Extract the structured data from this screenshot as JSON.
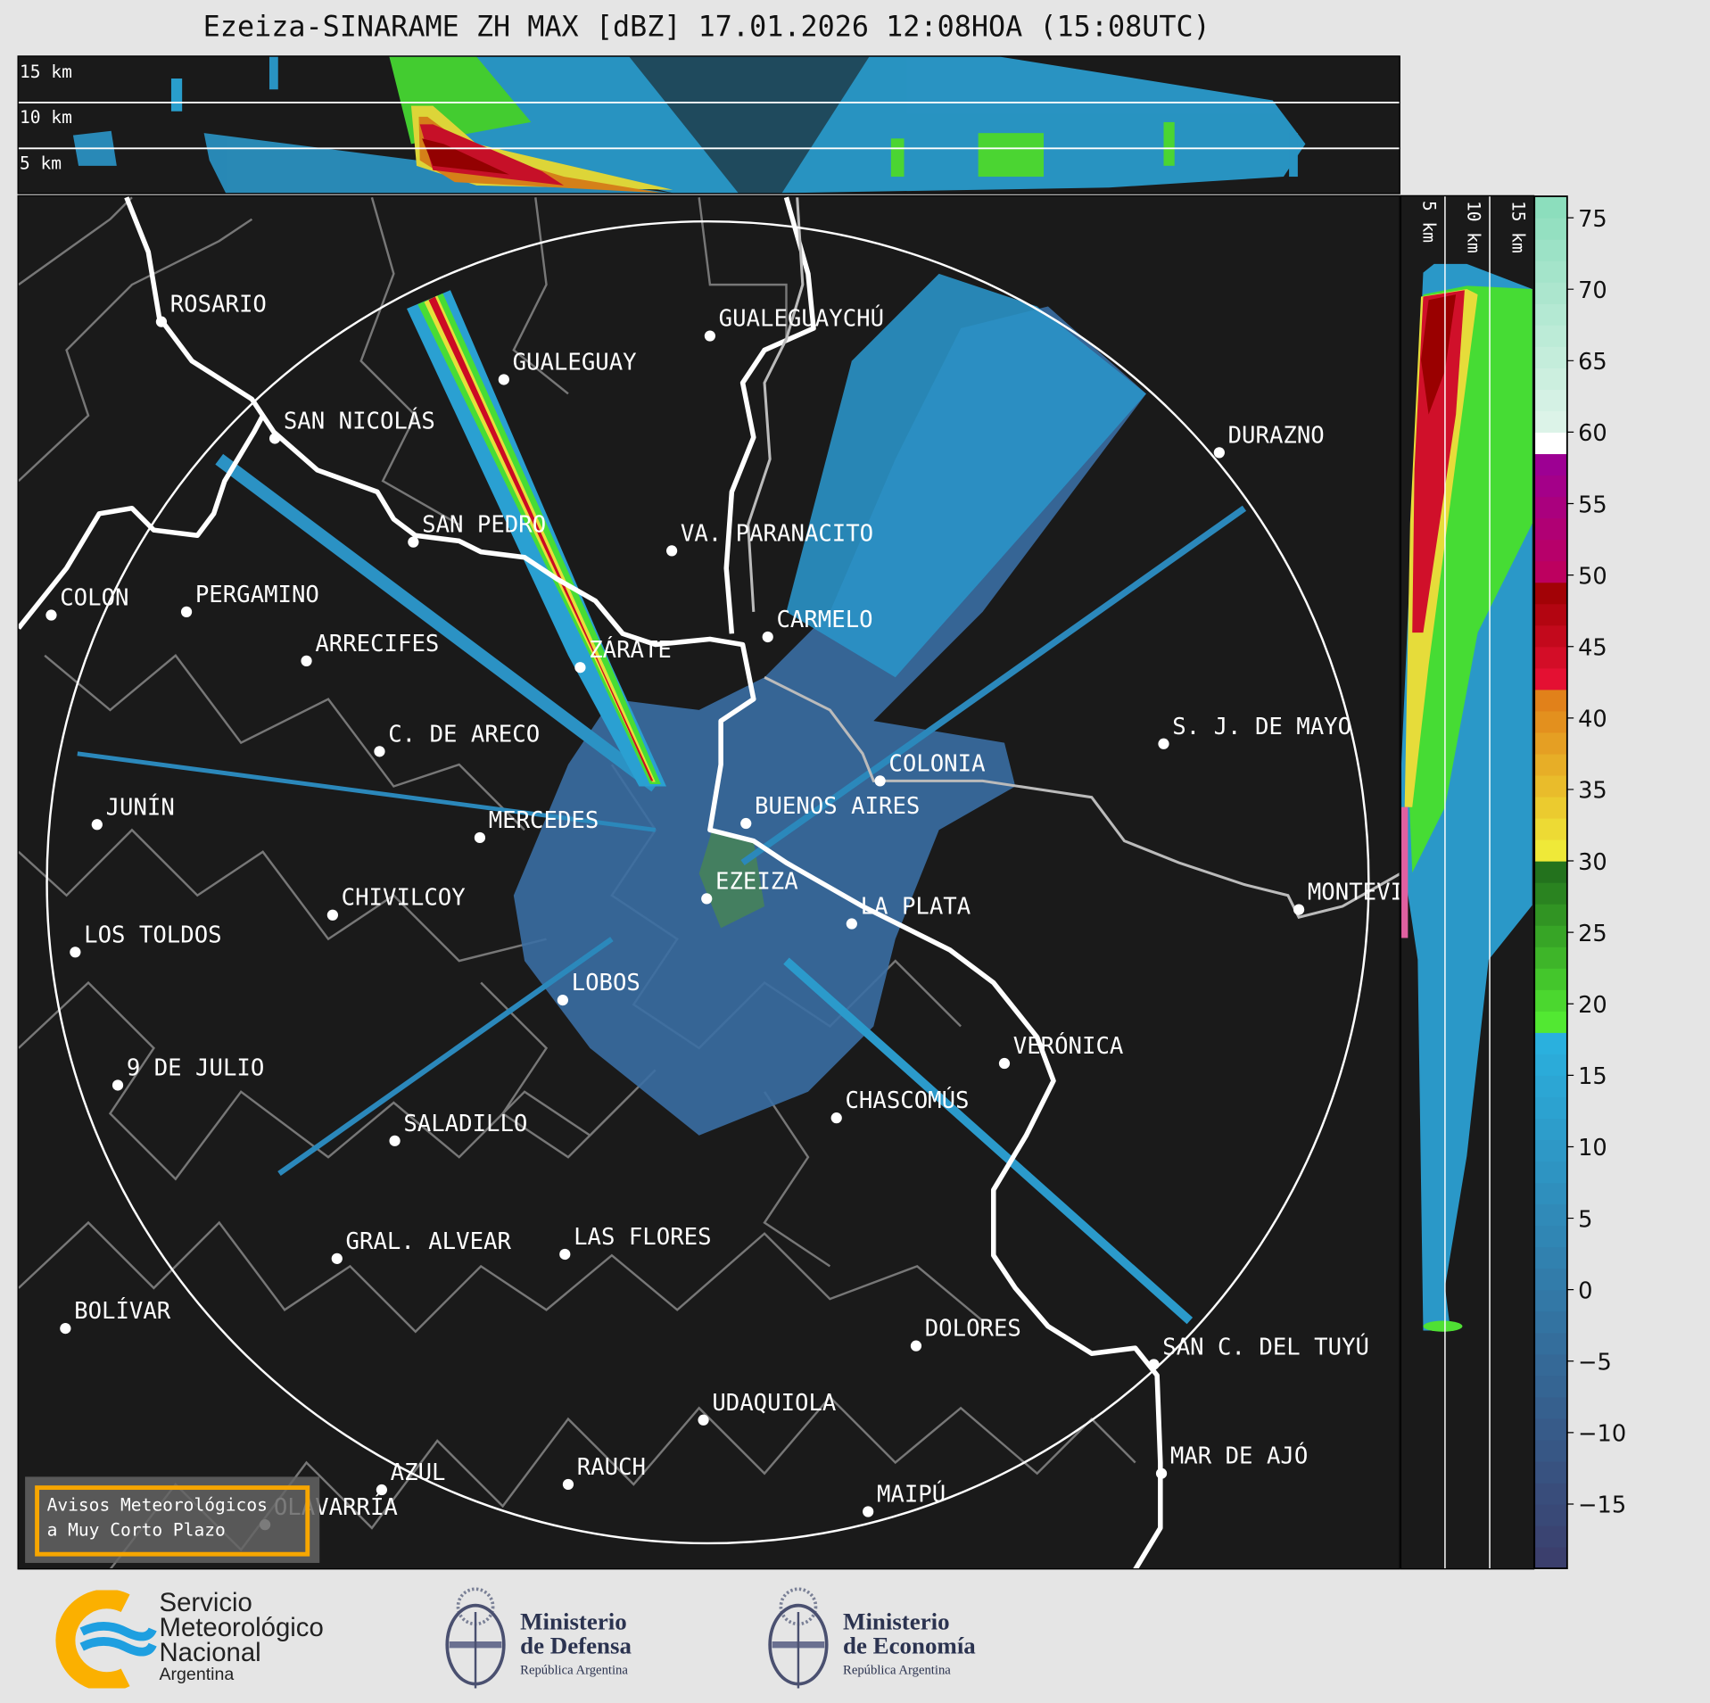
{
  "title": "Ezeiza-SINARAME ZH MAX [dBZ] 17.01.2026 12:08HOA (15:08UTC)",
  "top_panel": {
    "height_labels": [
      "15 km",
      "10 km",
      "5 km"
    ]
  },
  "side_panel": {
    "height_labels": [
      "5 km",
      "10 km",
      "15 km"
    ]
  },
  "colorbar": {
    "unit": "dBZ",
    "range": [
      -19.5,
      76.5
    ],
    "bin_width": 1.5,
    "ticks": [
      75,
      70,
      65,
      60,
      55,
      50,
      45,
      40,
      35,
      30,
      25,
      20,
      15,
      10,
      5,
      0,
      -5,
      -10,
      -15
    ],
    "tick_labels": [
      "75",
      "70",
      "65",
      "60",
      "55",
      "50",
      "45",
      "40",
      "35",
      "30",
      "25",
      "20",
      "15",
      "10",
      "5",
      "0",
      "−5",
      "−10",
      "−15"
    ],
    "color_segments": [
      {
        "from": -19.5,
        "to": 18,
        "start": "#3b3d6b",
        "end": "#2ab2e0"
      },
      {
        "from": 18,
        "to": 30,
        "start": "#55f033",
        "end": "#206a1c"
      },
      {
        "from": 30,
        "to": 42,
        "start": "#f0f03a",
        "end": "#e07a18"
      },
      {
        "from": 42,
        "to": 49.5,
        "start": "#ec1238",
        "end": "#9a0000"
      },
      {
        "from": 49.5,
        "to": 58.5,
        "start": "#c0005a",
        "end": "#9a0098"
      },
      {
        "from": 58.5,
        "to": 60,
        "start": "#ffffff",
        "end": "#ffffff"
      },
      {
        "from": 60,
        "to": 76.5,
        "start": "#e0f4ea",
        "end": "#88ddbb"
      }
    ]
  },
  "map": {
    "range_ring_color": "#ffffff",
    "cities": [
      {
        "name": "ROSARIO",
        "dot": [
          147,
          294
        ]
      },
      {
        "name": "GUALEGUAY",
        "dot": [
          461,
          347
        ]
      },
      {
        "name": "GUALEGUAYCHÚ",
        "dot": [
          650,
          307
        ]
      },
      {
        "name": "SAN NICOLÁS",
        "dot": [
          251,
          401
        ]
      },
      {
        "name": "DURAZNO",
        "dot": [
          1117,
          414
        ]
      },
      {
        "name": "SAN PEDRO",
        "dot": [
          378,
          496
        ]
      },
      {
        "name": "VA. PARANACITO",
        "dot": [
          615,
          504
        ]
      },
      {
        "name": "COLON",
        "dot": [
          46,
          563
        ]
      },
      {
        "name": "PERGAMINO",
        "dot": [
          170,
          560
        ]
      },
      {
        "name": "CARMELO",
        "dot": [
          703,
          583
        ]
      },
      {
        "name": "ARRECIFES",
        "dot": [
          280,
          605
        ]
      },
      {
        "name": "ZÁRATE",
        "dot": [
          531,
          611
        ]
      },
      {
        "name": "S. J. DE MAYO",
        "dot": [
          1066,
          681
        ]
      },
      {
        "name": "C. DE ARECO",
        "dot": [
          347,
          688
        ]
      },
      {
        "name": "COLONIA",
        "dot": [
          806,
          715
        ]
      },
      {
        "name": "JUNÍN",
        "dot": [
          88,
          755
        ]
      },
      {
        "name": "BUENOS AIRES",
        "dot": [
          683,
          754
        ]
      },
      {
        "name": "MERCEDES",
        "dot": [
          439,
          767
        ]
      },
      {
        "name": "EZEIZA",
        "dot": [
          647,
          823
        ]
      },
      {
        "name": "CHIVILCOY",
        "dot": [
          304,
          838
        ]
      },
      {
        "name": "LA PLATA",
        "dot": [
          780,
          846
        ]
      },
      {
        "name": "MONTEVIDEO",
        "dot": [
          1190,
          833
        ]
      },
      {
        "name": "LOS TOLDOS",
        "dot": [
          68,
          872
        ]
      },
      {
        "name": "LOBOS",
        "dot": [
          515,
          916
        ]
      },
      {
        "name": "VERÓNICA",
        "dot": [
          920,
          974
        ]
      },
      {
        "name": "9 DE JULIO",
        "dot": [
          107,
          994
        ]
      },
      {
        "name": "CHASCOMÚS",
        "dot": [
          766,
          1024
        ]
      },
      {
        "name": "SALADILLO",
        "dot": [
          361,
          1045
        ]
      },
      {
        "name": "GRAL. ALVEAR",
        "dot": [
          308,
          1153
        ]
      },
      {
        "name": "LAS FLORES",
        "dot": [
          517,
          1149
        ]
      },
      {
        "name": "BOLÍVAR",
        "dot": [
          59,
          1217
        ]
      },
      {
        "name": "DOLORES",
        "dot": [
          839,
          1233
        ]
      },
      {
        "name": "SAN C. DEL TUYÚ",
        "dot": [
          1057,
          1250
        ]
      },
      {
        "name": "UDAQUIOLA",
        "dot": [
          644,
          1301
        ]
      },
      {
        "name": "MAR DE AJÓ",
        "dot": [
          1064,
          1350
        ]
      },
      {
        "name": "RAUCH",
        "dot": [
          520,
          1360
        ]
      },
      {
        "name": "AZUL",
        "dot": [
          349,
          1365
        ]
      },
      {
        "name": "OLAVARRÍA",
        "dot": [
          242,
          1397
        ]
      },
      {
        "name": "MAIPÚ",
        "dot": [
          795,
          1385
        ]
      }
    ]
  },
  "alert_box": {
    "line1": "Avisos Meteorológicos",
    "line2": "a Muy Corto Plazo",
    "border_color": "#f7a600"
  },
  "logos": {
    "smn": {
      "line1": "Servicio",
      "line2": "Meteorológico",
      "line3": "Nacional",
      "line4": "Argentina"
    },
    "defensa": {
      "line1": "Ministerio",
      "line2": "de Defensa",
      "line3": "República Argentina"
    },
    "economia": {
      "line1": "Ministerio",
      "line2": "de Economía",
      "line3": "República Argentina"
    }
  }
}
